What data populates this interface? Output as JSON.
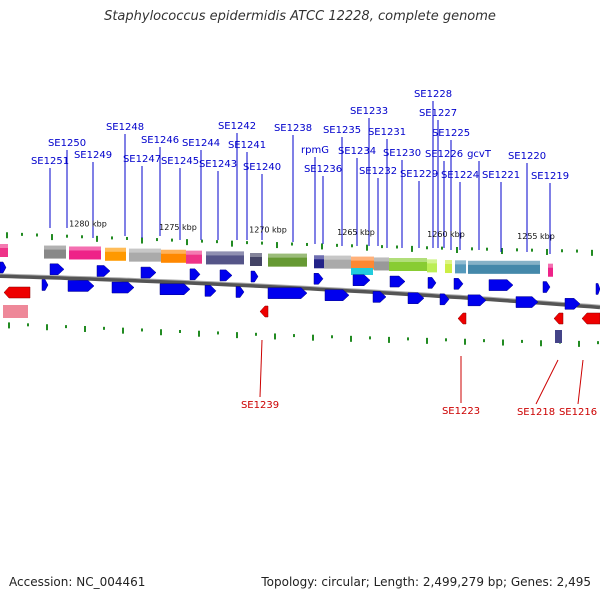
{
  "header": {
    "title": "Staphylococcus epidermidis ATCC 12228, complete genome"
  },
  "footer": {
    "accession": "Accession: NC_004461",
    "topology": "Topology: circular; Length: 2,499,279 bp; Genes: 2,495"
  },
  "scale_labels": [
    "1280 kbp",
    "1275 kbp",
    "1270 kbp",
    "1265 kbp",
    "1260 kbp",
    "1255 kbp"
  ],
  "top_genes": [
    "SE1251",
    "SE1250",
    "SE1249",
    "SE1248",
    "SE1247",
    "SE1246",
    "SE1245",
    "SE1244",
    "SE1243",
    "SE1242",
    "SE1241",
    "SE1240",
    "SE1238",
    "rpmG",
    "SE1236",
    "SE1235",
    "SE1234",
    "SE1233",
    "SE1232",
    "SE1231",
    "SE1230",
    "SE1229",
    "SE1228",
    "SE1227",
    "SE1226",
    "SE1225",
    "SE1224",
    "gcvT",
    "SE1221",
    "SE1220",
    "SE1219"
  ],
  "bottom_genes": [
    "SE1239",
    "SE1223",
    "SE1218",
    "SE1216"
  ],
  "colors": {
    "forward": "#0000ee",
    "reverse": "#ee0000",
    "label_top": "#0000cc",
    "label_bottom": "#cc0000",
    "tick": "#228b22"
  }
}
